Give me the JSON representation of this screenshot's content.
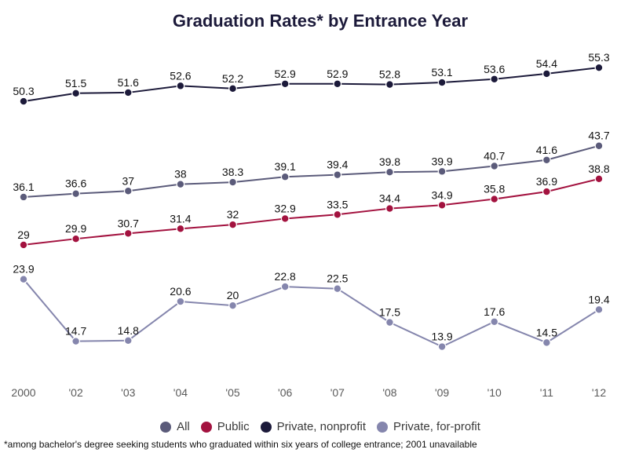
{
  "chart_data": {
    "type": "line",
    "title": "Graduation Rates* by Entrance Year",
    "xlabel": "",
    "ylabel": "",
    "categories": [
      "2000",
      "'02",
      "'03",
      "'04",
      "'05",
      "'06",
      "'07",
      "'08",
      "'09",
      "'10",
      "'11",
      "'12"
    ],
    "ylim": [
      10,
      58
    ],
    "grid": false,
    "legend_position": "bottom",
    "series": [
      {
        "name": "All",
        "color": "#5b5b7a",
        "values": [
          36.1,
          36.6,
          37,
          38,
          38.3,
          39.1,
          39.4,
          39.8,
          39.9,
          40.7,
          41.6,
          43.7
        ]
      },
      {
        "name": "Public",
        "color": "#a3123f",
        "values": [
          29,
          29.9,
          30.7,
          31.4,
          32,
          32.9,
          33.5,
          34.4,
          34.9,
          35.8,
          36.9,
          38.8
        ]
      },
      {
        "name": "Private, nonprofit",
        "color": "#1c1a3a",
        "values": [
          50.3,
          51.5,
          51.6,
          52.6,
          52.2,
          52.9,
          52.9,
          52.8,
          53.1,
          53.6,
          54.4,
          55.3
        ]
      },
      {
        "name": "Private, for-profit",
        "color": "#8586ad",
        "values": [
          23.9,
          14.7,
          14.8,
          20.6,
          20,
          22.8,
          22.5,
          17.5,
          13.9,
          17.6,
          14.5,
          19.4
        ]
      }
    ],
    "footnote": "*among bachelor's degree seeking students who graduated within six years of college entrance; 2001 unavailable"
  }
}
